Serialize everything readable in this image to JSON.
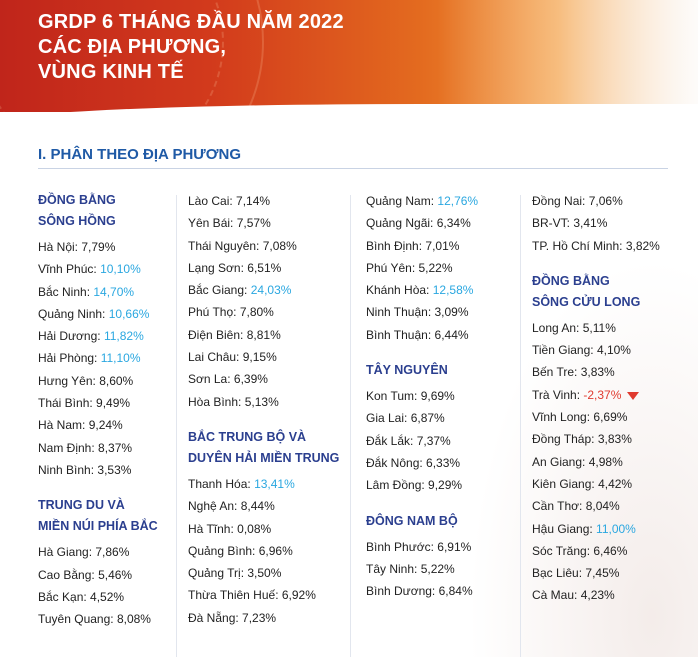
{
  "header": {
    "title_line1": "GRDP 6 THÁNG ĐẦU NĂM 2022",
    "title_line2": "CÁC ĐỊA PHƯƠNG,",
    "title_line3": "VÙNG KINH TẾ"
  },
  "section_title": "I. PHÂN THEO ĐỊA PHƯƠNG",
  "colors": {
    "highlight": "#2aa7e0",
    "negative": "#e03a2f",
    "region": "#2b3f8f",
    "section": "#1f5aa6"
  },
  "columns": [
    [
      {
        "type": "region",
        "lines": [
          "ĐỒNG BẰNG",
          "SÔNG HỒNG"
        ]
      },
      {
        "type": "item",
        "name": "Hà Nội:",
        "value": "7,79%"
      },
      {
        "type": "item",
        "name": "Vĩnh Phúc:",
        "value": "10,10%",
        "hl": true
      },
      {
        "type": "item",
        "name": "Bắc Ninh:",
        "value": "14,70%",
        "hl": true
      },
      {
        "type": "item",
        "name": "Quảng Ninh:",
        "value": "10,66%",
        "hl": true
      },
      {
        "type": "item",
        "name": "Hải Dương:",
        "value": "11,82%",
        "hl": true
      },
      {
        "type": "item",
        "name": "Hải Phòng:",
        "value": "11,10%",
        "hl": true
      },
      {
        "type": "item",
        "name": "Hưng Yên:",
        "value": "8,60%"
      },
      {
        "type": "item",
        "name": "Thái Bình:",
        "value": "9,49%"
      },
      {
        "type": "item",
        "name": "Hà Nam:",
        "value": "9,24%"
      },
      {
        "type": "item",
        "name": "Nam Định:",
        "value": "8,37%"
      },
      {
        "type": "item",
        "name": "Ninh Bình:",
        "value": "3,53%"
      },
      {
        "type": "region",
        "lines": [
          "TRUNG DU VÀ",
          "MIỀN NÚI PHÍA BẮC"
        ]
      },
      {
        "type": "item",
        "name": "Hà Giang:",
        "value": "7,86%"
      },
      {
        "type": "item",
        "name": "Cao Bằng:",
        "value": "5,46%"
      },
      {
        "type": "item",
        "name": "Bắc Kạn:",
        "value": "4,52%"
      },
      {
        "type": "item",
        "name": "Tuyên Quang:",
        "value": "8,08%"
      }
    ],
    [
      {
        "type": "item",
        "name": "Lào Cai:",
        "value": "7,14%"
      },
      {
        "type": "item",
        "name": "Yên Bái:",
        "value": "7,57%"
      },
      {
        "type": "item",
        "name": "Thái Nguyên:",
        "value": "7,08%"
      },
      {
        "type": "item",
        "name": "Lạng Sơn:",
        "value": "6,51%"
      },
      {
        "type": "item",
        "name": "Bắc Giang:",
        "value": "24,03%",
        "hl": true
      },
      {
        "type": "item",
        "name": "Phú Thọ:",
        "value": "7,80%"
      },
      {
        "type": "item",
        "name": "Điện Biên:",
        "value": "8,81%"
      },
      {
        "type": "item",
        "name": "Lai Châu:",
        "value": "9,15%"
      },
      {
        "type": "item",
        "name": "Sơn La:",
        "value": "6,39%"
      },
      {
        "type": "item",
        "name": "Hòa Bình:",
        "value": "5,13%"
      },
      {
        "type": "region",
        "lines": [
          "BẮC TRUNG BỘ VÀ",
          "DUYÊN HẢI MIỀN TRUNG"
        ]
      },
      {
        "type": "item",
        "name": "Thanh Hóa:",
        "value": "13,41%",
        "hl": true
      },
      {
        "type": "item",
        "name": "Nghệ An:",
        "value": "8,44%"
      },
      {
        "type": "item",
        "name": "Hà Tĩnh:",
        "value": "0,08%"
      },
      {
        "type": "item",
        "name": "Quảng Bình:",
        "value": "6,96%"
      },
      {
        "type": "item",
        "name": "Quảng Trị:",
        "value": "3,50%"
      },
      {
        "type": "item",
        "name": "Thừa Thiên Huế:",
        "value": "6,92%"
      },
      {
        "type": "item",
        "name": "Đà Nẵng:",
        "value": "7,23%"
      }
    ],
    [
      {
        "type": "item",
        "name": "Quảng Nam:",
        "value": "12,76%",
        "hl": true
      },
      {
        "type": "item",
        "name": "Quảng Ngãi:",
        "value": "6,34%"
      },
      {
        "type": "item",
        "name": "Bình Định:",
        "value": "7,01%"
      },
      {
        "type": "item",
        "name": "Phú Yên:",
        "value": "5,22%"
      },
      {
        "type": "item",
        "name": "Khánh Hòa:",
        "value": "12,58%",
        "hl": true
      },
      {
        "type": "item",
        "name": "Ninh Thuận:",
        "value": "3,09%"
      },
      {
        "type": "item",
        "name": "Bình Thuận:",
        "value": "6,44%"
      },
      {
        "type": "region",
        "lines": [
          "TÂY NGUYÊN"
        ]
      },
      {
        "type": "item",
        "name": "Kon Tum:",
        "value": "9,69%"
      },
      {
        "type": "item",
        "name": "Gia Lai:",
        "value": "6,87%"
      },
      {
        "type": "item",
        "name": "Đắk Lắk:",
        "value": "7,37%"
      },
      {
        "type": "item",
        "name": "Đắk Nông:",
        "value": "6,33%"
      },
      {
        "type": "item",
        "name": "Lâm Đồng:",
        "value": "9,29%"
      },
      {
        "type": "region",
        "lines": [
          "ĐÔNG NAM BỘ"
        ]
      },
      {
        "type": "item",
        "name": "Bình Phước:",
        "value": "6,91%"
      },
      {
        "type": "item",
        "name": "Tây Ninh:",
        "value": "5,22%"
      },
      {
        "type": "item",
        "name": "Bình Dương:",
        "value": "6,84%"
      }
    ],
    [
      {
        "type": "item",
        "name": "Đồng Nai:",
        "value": "7,06%"
      },
      {
        "type": "item",
        "name": "BR-VT:",
        "value": "3,41%"
      },
      {
        "type": "item",
        "name": "TP. Hồ Chí Minh:",
        "value": "3,82%"
      },
      {
        "type": "region",
        "lines": [
          "ĐỒNG BẰNG",
          "SÔNG CỬU LONG"
        ]
      },
      {
        "type": "item",
        "name": "Long An:",
        "value": "5,11%"
      },
      {
        "type": "item",
        "name": "Tiền Giang:",
        "value": "4,10%"
      },
      {
        "type": "item",
        "name": "Bến Tre:",
        "value": "3,83%"
      },
      {
        "type": "item",
        "name": "Trà Vinh:",
        "value": "-2,37%",
        "neg": true
      },
      {
        "type": "item",
        "name": "Vĩnh Long:",
        "value": "6,69%"
      },
      {
        "type": "item",
        "name": "Đồng Tháp:",
        "value": "3,83%"
      },
      {
        "type": "item",
        "name": "An Giang:",
        "value": "4,98%"
      },
      {
        "type": "item",
        "name": "Kiên Giang:",
        "value": "4,42%"
      },
      {
        "type": "item",
        "name": "Cần Thơ:",
        "value": "8,04%"
      },
      {
        "type": "item",
        "name": "Hậu Giang:",
        "value": "11,00%",
        "hl": true
      },
      {
        "type": "item",
        "name": "Sóc Trăng:",
        "value": "6,46%"
      },
      {
        "type": "item",
        "name": "Bạc Liêu:",
        "value": "7,45%"
      },
      {
        "type": "item",
        "name": "Cà Mau:",
        "value": "4,23%"
      }
    ]
  ]
}
